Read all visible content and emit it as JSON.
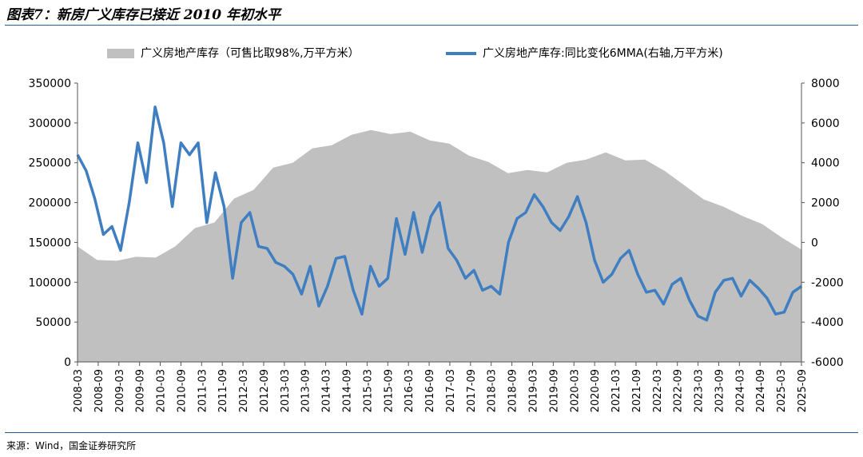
{
  "header": {
    "title": "图表7：新房广义库存已接近 2010 年初水平"
  },
  "footer": {
    "source": "来源：Wind，国金证券研究所"
  },
  "chart_data": {
    "type": "area+line",
    "legend_position": "top",
    "grid": false,
    "colors": {
      "area": "#c0c0c0",
      "line": "#3f7ec0",
      "rule": "#1f5f9e"
    },
    "y_left": {
      "min": 0,
      "max": 350000,
      "ticks": [
        "0",
        "50000",
        "100000",
        "150000",
        "200000",
        "250000",
        "300000",
        "350000"
      ]
    },
    "y_right": {
      "min": -6000,
      "max": 8000,
      "ticks": [
        "-6000",
        "-4000",
        "-2000",
        "0",
        "2000",
        "4000",
        "6000",
        "8000"
      ]
    },
    "x_ticks": [
      "2008-03",
      "2008-09",
      "2009-03",
      "2009-09",
      "2010-03",
      "2010-09",
      "2011-03",
      "2011-09",
      "2012-03",
      "2012-09",
      "2013-03",
      "2013-09",
      "2014-03",
      "2014-09",
      "2015-03",
      "2015-09",
      "2016-03",
      "2016-09",
      "2017-03",
      "2017-09",
      "2018-03",
      "2018-09",
      "2019-03",
      "2019-09",
      "2020-03",
      "2020-09",
      "2021-03",
      "2021-09",
      "2022-03",
      "2022-09",
      "2023-03",
      "2023-09",
      "2024-03",
      "2024-09",
      "2025-03",
      "2025-09"
    ],
    "series": [
      {
        "name": "广义房地产库存（可售比取98%,万平方米）",
        "kind": "area",
        "axis": "left",
        "values": [
          145000,
          128000,
          127000,
          132000,
          131000,
          145000,
          168000,
          175000,
          205000,
          216000,
          244000,
          250000,
          268000,
          272000,
          285000,
          291000,
          286000,
          289000,
          278000,
          274000,
          259000,
          251000,
          237000,
          241000,
          238000,
          250000,
          254000,
          263000,
          253000,
          254000,
          240000,
          222000,
          204000,
          195000,
          183000,
          173000,
          156000,
          141000
        ]
      },
      {
        "name": "广义房地产库存:同比变化6MMA(右轴,万平方米)",
        "kind": "line",
        "axis": "right",
        "values": [
          4400,
          3600,
          2200,
          400,
          800,
          -400,
          2000,
          5000,
          3000,
          6800,
          5000,
          1800,
          5000,
          4400,
          5000,
          1000,
          3500,
          1800,
          -1800,
          1000,
          1500,
          -200,
          -300,
          -1000,
          -1200,
          -1600,
          -2600,
          -1200,
          -3200,
          -2200,
          -800,
          -700,
          -2400,
          -3600,
          -1200,
          -2200,
          -1800,
          1200,
          -600,
          1500,
          -500,
          1300,
          2000,
          -300,
          -900,
          -1800,
          -1400,
          -2400,
          -2200,
          -2600,
          0,
          1200,
          1500,
          2400,
          1800,
          1000,
          600,
          1300,
          2300,
          1000,
          -900,
          -2000,
          -1600,
          -800,
          -400,
          -1600,
          -2500,
          -2400,
          -3100,
          -2100,
          -1800,
          -2900,
          -3700,
          -3900,
          -2500,
          -1900,
          -1800,
          -2700,
          -1900,
          -2300,
          -2800,
          -3600,
          -3500,
          -2500,
          -2200
        ]
      }
    ]
  }
}
